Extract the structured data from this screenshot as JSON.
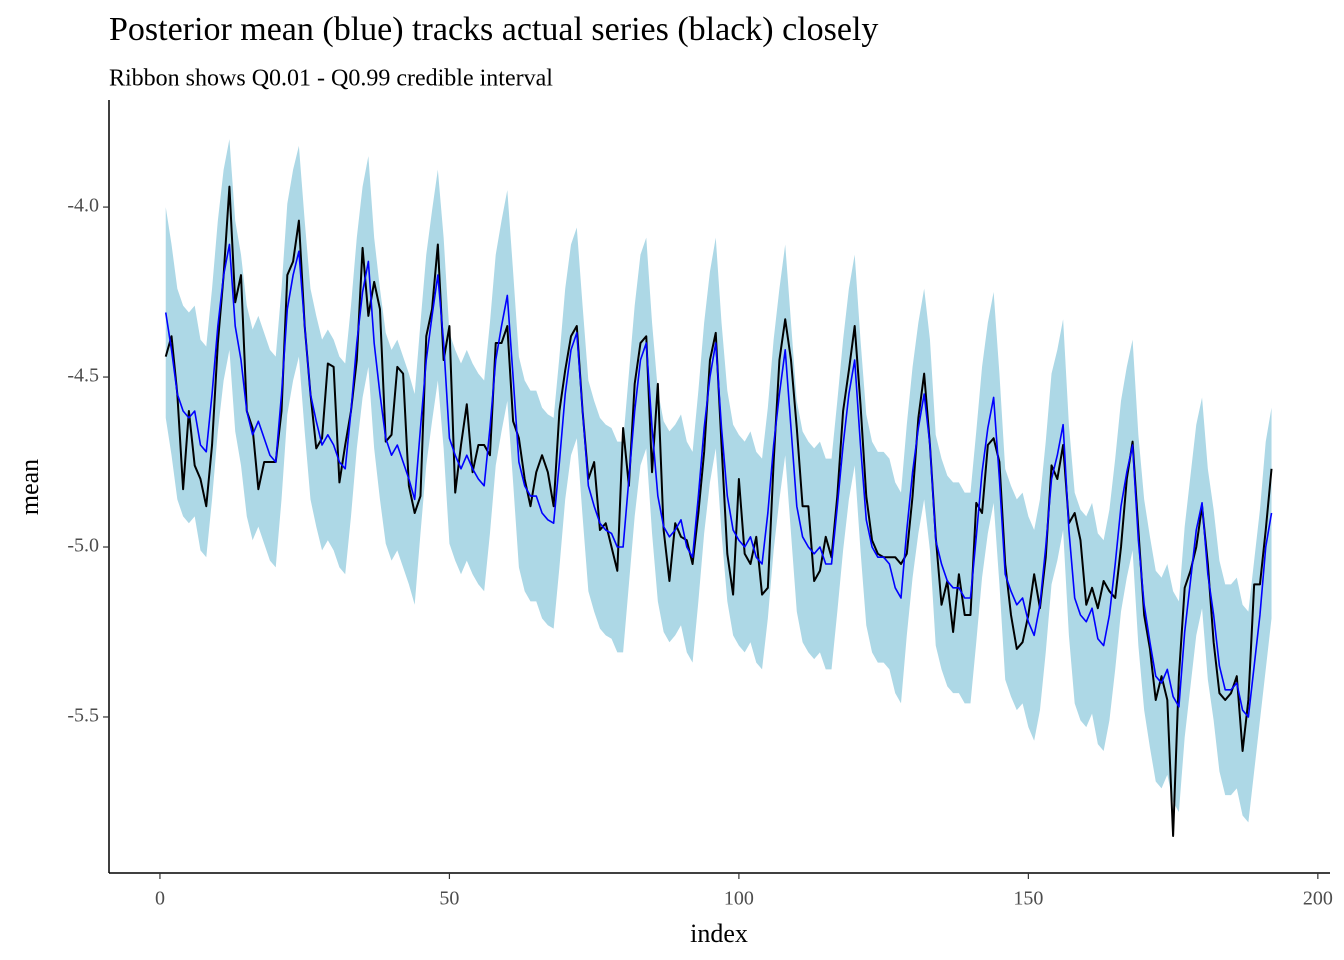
{
  "chart_data": {
    "type": "line",
    "title": "Posterior mean (blue) tracks actual series (black) closely",
    "subtitle": "Ribbon shows Q0.01 - Q0.99 credible interval",
    "x_label": "index",
    "y_label": "mean",
    "xlim": [
      -8.8,
      202.1
    ],
    "ylim": [
      -5.959,
      -3.685
    ],
    "xticks": [
      0,
      50,
      100,
      150,
      200
    ],
    "yticks": [
      {
        "value": -4,
        "label": "-4.0"
      },
      -4.5,
      {
        "value": -5,
        "label": "-5.0"
      },
      -5.5
    ],
    "x": [
      1,
      2,
      3,
      4,
      5,
      6,
      7,
      8,
      9,
      10,
      11,
      12,
      13,
      14,
      15,
      16,
      17,
      18,
      19,
      20,
      21,
      22,
      23,
      24,
      25,
      26,
      27,
      28,
      29,
      30,
      31,
      32,
      33,
      34,
      35,
      36,
      37,
      38,
      39,
      40,
      41,
      42,
      43,
      44,
      45,
      46,
      47,
      48,
      49,
      50,
      51,
      52,
      53,
      54,
      55,
      56,
      57,
      58,
      59,
      60,
      61,
      62,
      63,
      64,
      65,
      66,
      67,
      68,
      69,
      70,
      71,
      72,
      73,
      74,
      75,
      76,
      77,
      78,
      79,
      80,
      81,
      82,
      83,
      84,
      85,
      86,
      87,
      88,
      89,
      90,
      91,
      92,
      93,
      94,
      95,
      96,
      97,
      98,
      99,
      100,
      101,
      102,
      103,
      104,
      105,
      106,
      107,
      108,
      109,
      110,
      111,
      112,
      113,
      114,
      115,
      116,
      117,
      118,
      119,
      120,
      121,
      122,
      123,
      124,
      125,
      126,
      127,
      128,
      129,
      130,
      131,
      132,
      133,
      134,
      135,
      136,
      137,
      138,
      139,
      140,
      141,
      142,
      143,
      144,
      145,
      146,
      147,
      148,
      149,
      150,
      151,
      152,
      153,
      154,
      155,
      156,
      157,
      158,
      159,
      160,
      161,
      162,
      163,
      164,
      165,
      166,
      167,
      168,
      169,
      170,
      171,
      172,
      173,
      174,
      175,
      176,
      177,
      178,
      179,
      180,
      181,
      182,
      183,
      184,
      185,
      186,
      187,
      188,
      189,
      190,
      191,
      192
    ],
    "ribbon": {
      "color": "#add8e6",
      "upper": [
        -4.0,
        -4.11,
        -4.24,
        -4.29,
        -4.31,
        -4.29,
        -4.39,
        -4.41,
        -4.24,
        -4.04,
        -3.89,
        -3.8,
        -4.04,
        -4.14,
        -4.29,
        -4.36,
        -4.32,
        -4.37,
        -4.42,
        -4.44,
        -4.24,
        -3.99,
        -3.89,
        -3.82,
        -4.04,
        -4.24,
        -4.32,
        -4.39,
        -4.36,
        -4.39,
        -4.44,
        -4.46,
        -4.29,
        -4.09,
        -3.94,
        -3.85,
        -4.09,
        -4.24,
        -4.37,
        -4.42,
        -4.39,
        -4.44,
        -4.49,
        -4.55,
        -4.34,
        -4.14,
        -4.01,
        -3.89,
        -4.09,
        -4.37,
        -4.42,
        -4.46,
        -4.42,
        -4.46,
        -4.49,
        -4.51,
        -4.34,
        -4.14,
        -4.04,
        -3.95,
        -4.19,
        -4.44,
        -4.51,
        -4.54,
        -4.54,
        -4.59,
        -4.61,
        -4.62,
        -4.44,
        -4.24,
        -4.11,
        -4.06,
        -4.29,
        -4.51,
        -4.57,
        -4.62,
        -4.64,
        -4.65,
        -4.69,
        -4.69,
        -4.49,
        -4.29,
        -4.14,
        -4.09,
        -4.34,
        -4.54,
        -4.63,
        -4.66,
        -4.64,
        -4.61,
        -4.69,
        -4.72,
        -4.54,
        -4.34,
        -4.19,
        -4.09,
        -4.34,
        -4.54,
        -4.64,
        -4.67,
        -4.69,
        -4.66,
        -4.72,
        -4.74,
        -4.59,
        -4.39,
        -4.24,
        -4.11,
        -4.34,
        -4.57,
        -4.66,
        -4.69,
        -4.71,
        -4.69,
        -4.74,
        -4.74,
        -4.57,
        -4.39,
        -4.24,
        -4.14,
        -4.39,
        -4.61,
        -4.69,
        -4.72,
        -4.72,
        -4.74,
        -4.81,
        -4.84,
        -4.64,
        -4.47,
        -4.34,
        -4.24,
        -4.39,
        -4.67,
        -4.74,
        -4.79,
        -4.81,
        -4.81,
        -4.84,
        -4.84,
        -4.66,
        -4.47,
        -4.34,
        -4.25,
        -4.49,
        -4.77,
        -4.82,
        -4.86,
        -4.84,
        -4.91,
        -4.95,
        -4.86,
        -4.69,
        -4.49,
        -4.42,
        -4.33,
        -4.64,
        -4.84,
        -4.89,
        -4.91,
        -4.87,
        -4.96,
        -4.98,
        -4.89,
        -4.74,
        -4.57,
        -4.47,
        -4.39,
        -4.67,
        -4.86,
        -4.97,
        -5.07,
        -5.09,
        -5.05,
        -5.13,
        -5.16,
        -4.94,
        -4.79,
        -4.64,
        -4.56,
        -4.77,
        -4.89,
        -5.04,
        -5.11,
        -5.11,
        -5.09,
        -5.17,
        -5.19,
        -5.04,
        -4.89,
        -4.69,
        -4.59
      ],
      "lower": [
        -4.62,
        -4.73,
        -4.86,
        -4.91,
        -4.93,
        -4.91,
        -5.01,
        -5.03,
        -4.86,
        -4.66,
        -4.51,
        -4.42,
        -4.66,
        -4.76,
        -4.91,
        -4.98,
        -4.94,
        -4.99,
        -5.04,
        -5.06,
        -4.86,
        -4.61,
        -4.51,
        -4.44,
        -4.66,
        -4.86,
        -4.94,
        -5.01,
        -4.98,
        -5.01,
        -5.06,
        -5.08,
        -4.91,
        -4.71,
        -4.56,
        -4.47,
        -4.71,
        -4.86,
        -4.99,
        -5.04,
        -5.01,
        -5.06,
        -5.11,
        -5.17,
        -4.96,
        -4.76,
        -4.63,
        -4.51,
        -4.71,
        -4.99,
        -5.04,
        -5.08,
        -5.04,
        -5.08,
        -5.11,
        -5.13,
        -4.96,
        -4.76,
        -4.66,
        -4.57,
        -4.81,
        -5.06,
        -5.13,
        -5.16,
        -5.16,
        -5.21,
        -5.23,
        -5.24,
        -5.06,
        -4.86,
        -4.73,
        -4.68,
        -4.91,
        -5.13,
        -5.19,
        -5.24,
        -5.26,
        -5.27,
        -5.31,
        -5.31,
        -5.11,
        -4.91,
        -4.76,
        -4.71,
        -4.96,
        -5.16,
        -5.25,
        -5.28,
        -5.26,
        -5.23,
        -5.31,
        -5.34,
        -5.16,
        -4.96,
        -4.81,
        -4.71,
        -4.96,
        -5.16,
        -5.26,
        -5.29,
        -5.31,
        -5.28,
        -5.34,
        -5.36,
        -5.21,
        -5.01,
        -4.86,
        -4.73,
        -4.96,
        -5.19,
        -5.28,
        -5.31,
        -5.33,
        -5.31,
        -5.36,
        -5.36,
        -5.19,
        -5.01,
        -4.86,
        -4.76,
        -5.01,
        -5.23,
        -5.31,
        -5.34,
        -5.34,
        -5.36,
        -5.43,
        -5.46,
        -5.26,
        -5.09,
        -4.96,
        -4.86,
        -5.01,
        -5.29,
        -5.36,
        -5.41,
        -5.43,
        -5.43,
        -5.46,
        -5.46,
        -5.28,
        -5.09,
        -4.96,
        -4.87,
        -5.11,
        -5.39,
        -5.44,
        -5.48,
        -5.46,
        -5.53,
        -5.57,
        -5.48,
        -5.31,
        -5.11,
        -5.04,
        -4.95,
        -5.26,
        -5.46,
        -5.51,
        -5.53,
        -5.49,
        -5.58,
        -5.6,
        -5.51,
        -5.36,
        -5.19,
        -5.09,
        -5.01,
        -5.29,
        -5.48,
        -5.59,
        -5.69,
        -5.71,
        -5.67,
        -5.75,
        -5.78,
        -5.56,
        -5.41,
        -5.26,
        -5.18,
        -5.39,
        -5.51,
        -5.66,
        -5.73,
        -5.73,
        -5.71,
        -5.79,
        -5.81,
        -5.66,
        -5.51,
        -5.36,
        -5.21
      ]
    },
    "series": [
      {
        "color": "#000000",
        "values": [
          -4.44,
          -4.38,
          -4.55,
          -4.83,
          -4.6,
          -4.76,
          -4.8,
          -4.88,
          -4.7,
          -4.4,
          -4.2,
          -3.94,
          -4.28,
          -4.2,
          -4.6,
          -4.65,
          -4.83,
          -4.75,
          -4.75,
          -4.75,
          -4.6,
          -4.2,
          -4.16,
          -4.04,
          -4.35,
          -4.55,
          -4.71,
          -4.68,
          -4.46,
          -4.47,
          -4.81,
          -4.7,
          -4.6,
          -4.45,
          -4.12,
          -4.32,
          -4.22,
          -4.3,
          -4.69,
          -4.67,
          -4.47,
          -4.49,
          -4.82,
          -4.9,
          -4.85,
          -4.38,
          -4.3,
          -4.11,
          -4.45,
          -4.35,
          -4.84,
          -4.7,
          -4.58,
          -4.78,
          -4.7,
          -4.7,
          -4.73,
          -4.4,
          -4.4,
          -4.35,
          -4.63,
          -4.68,
          -4.8,
          -4.88,
          -4.78,
          -4.73,
          -4.78,
          -4.88,
          -4.6,
          -4.48,
          -4.38,
          -4.35,
          -4.6,
          -4.8,
          -4.75,
          -4.95,
          -4.93,
          -5.0,
          -5.07,
          -4.65,
          -4.82,
          -4.52,
          -4.4,
          -4.38,
          -4.78,
          -4.52,
          -4.95,
          -5.1,
          -4.93,
          -4.97,
          -4.98,
          -5.05,
          -4.9,
          -4.72,
          -4.45,
          -4.37,
          -4.7,
          -5.02,
          -5.14,
          -4.8,
          -5.02,
          -5.05,
          -4.97,
          -5.14,
          -5.12,
          -4.75,
          -4.45,
          -4.33,
          -4.45,
          -4.65,
          -4.88,
          -4.88,
          -5.1,
          -5.07,
          -4.97,
          -5.03,
          -4.85,
          -4.6,
          -4.48,
          -4.35,
          -4.58,
          -4.85,
          -4.98,
          -5.02,
          -5.03,
          -5.03,
          -5.03,
          -5.05,
          -5.02,
          -4.85,
          -4.62,
          -4.49,
          -4.7,
          -4.97,
          -5.17,
          -5.1,
          -5.25,
          -5.08,
          -5.2,
          -5.2,
          -4.87,
          -4.9,
          -4.7,
          -4.68,
          -4.75,
          -5.05,
          -5.2,
          -5.3,
          -5.28,
          -5.2,
          -5.08,
          -5.18,
          -5.03,
          -4.76,
          -4.8,
          -4.7,
          -4.93,
          -4.9,
          -4.98,
          -5.17,
          -5.12,
          -5.18,
          -5.1,
          -5.13,
          -5.15,
          -5.0,
          -4.8,
          -4.69,
          -4.95,
          -5.2,
          -5.3,
          -5.45,
          -5.38,
          -5.45,
          -5.85,
          -5.38,
          -5.12,
          -5.07,
          -5.0,
          -4.88,
          -5.05,
          -5.28,
          -5.43,
          -5.45,
          -5.43,
          -5.38,
          -5.6,
          -5.45,
          -5.11,
          -5.11,
          -4.95,
          -4.77
        ]
      },
      {
        "color": "#0000ff",
        "values": [
          -4.31,
          -4.42,
          -4.55,
          -4.6,
          -4.62,
          -4.6,
          -4.7,
          -4.72,
          -4.55,
          -4.35,
          -4.2,
          -4.11,
          -4.35,
          -4.45,
          -4.6,
          -4.67,
          -4.63,
          -4.68,
          -4.73,
          -4.75,
          -4.55,
          -4.3,
          -4.2,
          -4.13,
          -4.35,
          -4.55,
          -4.63,
          -4.7,
          -4.67,
          -4.7,
          -4.75,
          -4.77,
          -4.6,
          -4.4,
          -4.25,
          -4.16,
          -4.4,
          -4.55,
          -4.68,
          -4.73,
          -4.7,
          -4.75,
          -4.8,
          -4.86,
          -4.65,
          -4.45,
          -4.32,
          -4.2,
          -4.4,
          -4.68,
          -4.73,
          -4.77,
          -4.73,
          -4.77,
          -4.8,
          -4.82,
          -4.65,
          -4.45,
          -4.35,
          -4.26,
          -4.5,
          -4.75,
          -4.82,
          -4.85,
          -4.85,
          -4.9,
          -4.92,
          -4.93,
          -4.75,
          -4.55,
          -4.42,
          -4.37,
          -4.6,
          -4.82,
          -4.88,
          -4.93,
          -4.95,
          -4.96,
          -5.0,
          -5.0,
          -4.8,
          -4.6,
          -4.45,
          -4.4,
          -4.65,
          -4.85,
          -4.94,
          -4.97,
          -4.95,
          -4.92,
          -5.0,
          -5.03,
          -4.85,
          -4.65,
          -4.5,
          -4.4,
          -4.65,
          -4.85,
          -4.95,
          -4.98,
          -5.0,
          -4.97,
          -5.03,
          -5.05,
          -4.9,
          -4.7,
          -4.55,
          -4.42,
          -4.65,
          -4.88,
          -4.97,
          -5.0,
          -5.02,
          -5.0,
          -5.05,
          -5.05,
          -4.88,
          -4.7,
          -4.55,
          -4.45,
          -4.7,
          -4.92,
          -5.0,
          -5.03,
          -5.03,
          -5.05,
          -5.12,
          -5.15,
          -4.95,
          -4.78,
          -4.65,
          -4.55,
          -4.7,
          -4.98,
          -5.05,
          -5.1,
          -5.12,
          -5.12,
          -5.15,
          -5.15,
          -4.97,
          -4.78,
          -4.65,
          -4.56,
          -4.8,
          -5.08,
          -5.13,
          -5.17,
          -5.15,
          -5.22,
          -5.26,
          -5.17,
          -5.0,
          -4.8,
          -4.73,
          -4.64,
          -4.95,
          -5.15,
          -5.2,
          -5.22,
          -5.18,
          -5.27,
          -5.29,
          -5.2,
          -5.05,
          -4.88,
          -4.78,
          -4.7,
          -4.98,
          -5.17,
          -5.28,
          -5.38,
          -5.4,
          -5.36,
          -5.44,
          -5.47,
          -5.25,
          -5.1,
          -4.95,
          -4.87,
          -5.08,
          -5.2,
          -5.35,
          -5.42,
          -5.42,
          -5.4,
          -5.48,
          -5.5,
          -5.35,
          -5.2,
          -5.0,
          -4.9
        ]
      }
    ]
  }
}
